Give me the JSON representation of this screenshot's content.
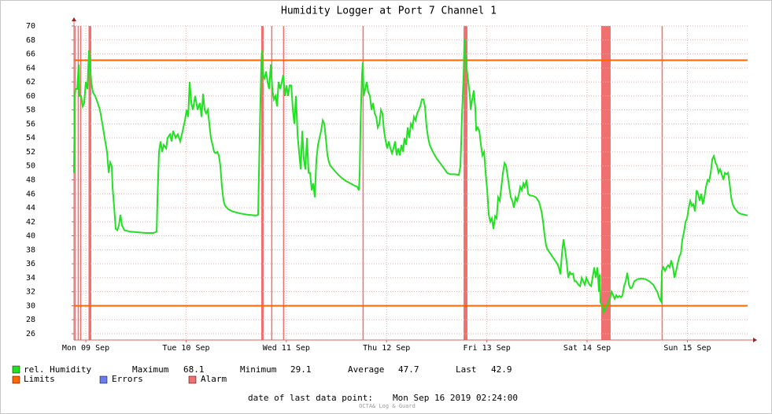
{
  "chart_data": {
    "type": "line",
    "title": "Humidity Logger at Port 7 Channel 1",
    "x": [
      9.382,
      9.39,
      9.398,
      9.414,
      9.429,
      9.437,
      9.453,
      9.469,
      9.484,
      9.5,
      9.516,
      9.531,
      9.539,
      9.555,
      9.571,
      9.594,
      9.618,
      9.641,
      9.665,
      9.688,
      9.712,
      9.728,
      9.743,
      9.759,
      9.767,
      9.783,
      9.798,
      9.814,
      9.83,
      9.845,
      9.861,
      9.885,
      9.94,
      10.018,
      10.097,
      10.175,
      10.207,
      10.214,
      10.23,
      10.246,
      10.261,
      10.277,
      10.301,
      10.316,
      10.34,
      10.356,
      10.371,
      10.395,
      10.418,
      10.442,
      10.466,
      10.489,
      10.505,
      10.521,
      10.536,
      10.552,
      10.568,
      10.591,
      10.615,
      10.638,
      10.654,
      10.67,
      10.685,
      10.701,
      10.717,
      10.732,
      10.748,
      10.764,
      10.78,
      10.795,
      10.811,
      10.827,
      10.842,
      10.858,
      10.874,
      10.889,
      10.921,
      10.96,
      11.039,
      11.117,
      11.196,
      11.219,
      11.235,
      11.251,
      11.258,
      11.266,
      11.282,
      11.298,
      11.313,
      11.329,
      11.345,
      11.36,
      11.376,
      11.392,
      11.408,
      11.423,
      11.439,
      11.455,
      11.47,
      11.486,
      11.502,
      11.517,
      11.533,
      11.549,
      11.565,
      11.58,
      11.596,
      11.612,
      11.627,
      11.643,
      11.659,
      11.674,
      11.69,
      11.706,
      11.722,
      11.737,
      11.753,
      11.769,
      11.784,
      11.8,
      11.816,
      11.831,
      11.847,
      11.863,
      11.879,
      11.894,
      11.91,
      11.926,
      11.941,
      11.981,
      12.02,
      12.059,
      12.098,
      12.138,
      12.177,
      12.208,
      12.224,
      12.232,
      12.24,
      12.255,
      12.263,
      12.271,
      12.287,
      12.302,
      12.318,
      12.334,
      12.35,
      12.365,
      12.381,
      12.397,
      12.412,
      12.428,
      12.444,
      12.459,
      12.475,
      12.491,
      12.507,
      12.522,
      12.538,
      12.554,
      12.569,
      12.585,
      12.601,
      12.616,
      12.632,
      12.648,
      12.664,
      12.679,
      12.695,
      12.711,
      12.726,
      12.742,
      12.758,
      12.773,
      12.789,
      12.805,
      12.821,
      12.836,
      12.852,
      12.868,
      12.883,
      12.899,
      12.915,
      12.93,
      12.962,
      13.001,
      13.04,
      13.08,
      13.103,
      13.135,
      13.182,
      13.221,
      13.237,
      13.252,
      13.268,
      13.276,
      13.284,
      13.299,
      13.315,
      13.331,
      13.339,
      13.354,
      13.37,
      13.386,
      13.394,
      13.409,
      13.425,
      13.441,
      13.456,
      13.472,
      13.488,
      13.504,
      13.519,
      13.535,
      13.551,
      13.566,
      13.582,
      13.598,
      13.613,
      13.629,
      13.645,
      13.661,
      13.676,
      13.692,
      13.708,
      13.723,
      13.739,
      13.755,
      13.77,
      13.786,
      13.802,
      13.818,
      13.833,
      13.849,
      13.865,
      13.88,
      13.896,
      13.912,
      13.927,
      13.959,
      13.99,
      14.022,
      14.045,
      14.061,
      14.077,
      14.092,
      14.108,
      14.132,
      14.155,
      14.179,
      14.202,
      14.218,
      14.234,
      14.249,
      14.265,
      14.281,
      14.296,
      14.312,
      14.328,
      14.343,
      14.359,
      14.375,
      14.391,
      14.414,
      14.43,
      14.446,
      14.461,
      14.477,
      14.493,
      14.508,
      14.524,
      14.54,
      14.555,
      14.571,
      14.587,
      14.603,
      14.618,
      14.626,
      14.634,
      14.65,
      14.665,
      14.681,
      14.697,
      14.712,
      14.728,
      14.744,
      14.76,
      14.775,
      14.791,
      14.807,
      14.822,
      14.838,
      14.854,
      14.869,
      14.885,
      14.901,
      14.917,
      14.932,
      14.948,
      14.971,
      15.003,
      15.042,
      15.081,
      15.121,
      15.16,
      15.199,
      15.223,
      15.238,
      15.246,
      15.262,
      15.278,
      15.293,
      15.309,
      15.325,
      15.34,
      15.356,
      15.372,
      15.388,
      15.403,
      15.419,
      15.435,
      15.45,
      15.466,
      15.482,
      15.497,
      15.513,
      15.529,
      15.545,
      15.56,
      15.576,
      15.592,
      15.607,
      15.623,
      15.639,
      15.654,
      15.67,
      15.686,
      15.702,
      15.717,
      15.733,
      15.749,
      15.764,
      15.78,
      15.796,
      15.811,
      15.827,
      15.843,
      15.859,
      15.874,
      15.89,
      15.906,
      15.921,
      15.937,
      15.953,
      15.968,
      15.984,
      16.008,
      16.039,
      16.07,
      16.101
    ],
    "series": [
      {
        "name": "rel. Humidity",
        "color": "#22e022",
        "values": [
          49,
          60,
          61,
          61,
          64.5,
          60,
          60,
          58.5,
          59,
          62,
          61,
          66.5,
          65,
          62,
          60.5,
          60,
          59,
          58,
          56,
          54,
          52,
          49,
          50.5,
          50,
          47,
          44,
          41,
          40.8,
          41.5,
          43,
          41.5,
          40.8,
          40.6,
          40.5,
          40.4,
          40.4,
          40.6,
          45,
          52,
          53.5,
          52,
          53,
          52.5,
          54,
          54.5,
          53.5,
          55,
          54,
          54.5,
          53.5,
          55,
          56.5,
          58,
          57,
          62,
          59,
          58,
          60,
          58,
          59,
          57,
          60.3,
          58,
          57.5,
          58,
          56,
          54,
          53,
          52,
          51.8,
          52,
          51.5,
          50,
          47,
          45,
          44.3,
          43.8,
          43.5,
          43.2,
          43,
          42.9,
          43,
          55,
          65,
          66.5,
          63,
          62.5,
          63.5,
          62,
          61,
          64.5,
          61,
          59.5,
          60,
          58.5,
          62,
          61,
          62,
          63,
          60,
          61.5,
          60,
          61.5,
          61.5,
          58,
          56,
          60,
          54.5,
          52,
          49.5,
          55,
          51,
          49.5,
          54,
          49,
          49,
          46.5,
          47.5,
          45.5,
          51,
          53,
          54,
          55,
          56.5,
          56,
          54,
          51.5,
          50.5,
          50,
          49.3,
          48.7,
          48.2,
          47.8,
          47.5,
          47.2,
          47,
          46.5,
          49,
          56,
          63,
          64.8,
          60,
          61,
          62,
          60.5,
          60,
          58,
          59,
          57.5,
          57,
          55.5,
          56,
          58,
          57.5,
          55,
          53.5,
          52.5,
          53.5,
          52.5,
          51.8,
          52.5,
          53.5,
          51.5,
          52.5,
          51.5,
          53,
          52,
          54,
          53,
          55.5,
          54,
          56,
          55.5,
          57,
          56.5,
          57.5,
          58,
          58.5,
          59.5,
          59.5,
          58.5,
          55.5,
          54,
          53,
          52,
          51,
          50.3,
          49.5,
          49,
          48.8,
          48.8,
          48.7,
          50,
          57,
          63,
          68.1,
          66,
          64,
          62,
          60,
          58,
          59.5,
          60.8,
          58,
          55,
          55.5,
          55,
          53,
          51.5,
          52,
          49,
          46.5,
          43,
          42,
          42.5,
          41,
          42.8,
          42.5,
          45.5,
          45,
          47,
          49,
          50.4,
          50,
          48.5,
          47,
          45.5,
          45,
          44,
          45.5,
          45,
          45.8,
          47,
          46.5,
          47.5,
          47,
          48,
          46,
          45.8,
          45.7,
          45.5,
          44.8,
          43.5,
          42,
          40,
          38.5,
          38,
          37.5,
          37,
          36.5,
          36,
          35.5,
          34.5,
          37.5,
          39.5,
          38,
          36.3,
          34,
          34.8,
          34.5,
          34.6,
          33.5,
          33.5,
          33,
          32.8,
          34,
          33.5,
          33,
          34,
          33.5,
          33,
          32.8,
          34,
          35.5,
          34,
          35.5,
          32,
          34.5,
          30.5,
          30,
          29.1,
          29.5,
          30,
          30.5,
          31,
          32,
          31.5,
          31,
          31.5,
          31.2,
          31.4,
          31.2,
          31.5,
          32.8,
          33.5,
          34.7,
          33,
          32.5,
          32.6,
          33.5,
          33.8,
          33.9,
          33.8,
          33.5,
          33,
          32,
          31,
          30.6,
          35,
          35.5,
          35,
          35.5,
          35.8,
          35.5,
          36.5,
          35.5,
          34,
          35,
          36,
          37,
          37.5,
          39.5,
          40.5,
          42,
          42.5,
          44,
          45,
          44.3,
          44.5,
          43.5,
          46.5,
          46,
          45,
          46,
          44.5,
          45.5,
          47,
          48,
          47.8,
          49,
          51,
          51.4,
          50.5,
          50,
          49,
          49.5,
          48.8,
          48,
          49,
          48.8,
          49,
          47.5,
          45.5,
          44.5,
          44,
          43.7,
          43.3,
          43.1,
          43,
          42.9
        ]
      }
    ],
    "limits": {
      "name": "Limits",
      "color": "#ff6600",
      "values": [
        65.1,
        30
      ]
    },
    "errors": {
      "name": "Errors",
      "color": "#6a7cf0"
    },
    "alarms": {
      "name": "Alarm",
      "color": "#f07070",
      "ranges": [
        [
          9.388,
          9.394
        ],
        [
          9.419,
          9.425
        ],
        [
          9.443,
          9.449
        ],
        [
          9.527,
          9.555
        ],
        [
          11.25,
          11.274
        ],
        [
          11.349,
          11.355
        ],
        [
          11.467,
          11.473
        ],
        [
          12.26,
          12.266
        ],
        [
          13.268,
          13.307
        ],
        [
          14.641,
          14.735
        ],
        [
          15.243,
          15.249
        ]
      ]
    },
    "stats": [
      {
        "label": "Maximum",
        "value": 68.1
      },
      {
        "label": "Minimum",
        "value": 29.1
      },
      {
        "label": "Average",
        "value": 47.7
      },
      {
        "label": "Last",
        "value": 42.9
      }
    ],
    "footer": {
      "label": "date of last data point:",
      "value": "Mon Sep 16 2019 02:24:00"
    },
    "credit": "OCTA& Log & Guard",
    "xlim": [
      9.382,
      16.101
    ],
    "xticks": [
      {
        "value": 9.5,
        "label": "Mon 09 Sep"
      },
      {
        "value": 10.5,
        "label": "Tue 10 Sep"
      },
      {
        "value": 11.5,
        "label": "Wed 11 Sep"
      },
      {
        "value": 12.5,
        "label": "Thu 12 Sep"
      },
      {
        "value": 13.5,
        "label": "Fri 13 Sep"
      },
      {
        "value": 14.5,
        "label": "Sat 14 Sep"
      },
      {
        "value": 15.5,
        "label": "Sun 15 Sep"
      }
    ],
    "ylim": [
      25.1,
      70
    ],
    "yticks": [
      26,
      28,
      30,
      32,
      34,
      36,
      38,
      40,
      42,
      44,
      46,
      48,
      50,
      52,
      54,
      56,
      58,
      60,
      62,
      64,
      66,
      68,
      70
    ],
    "grid": true
  }
}
